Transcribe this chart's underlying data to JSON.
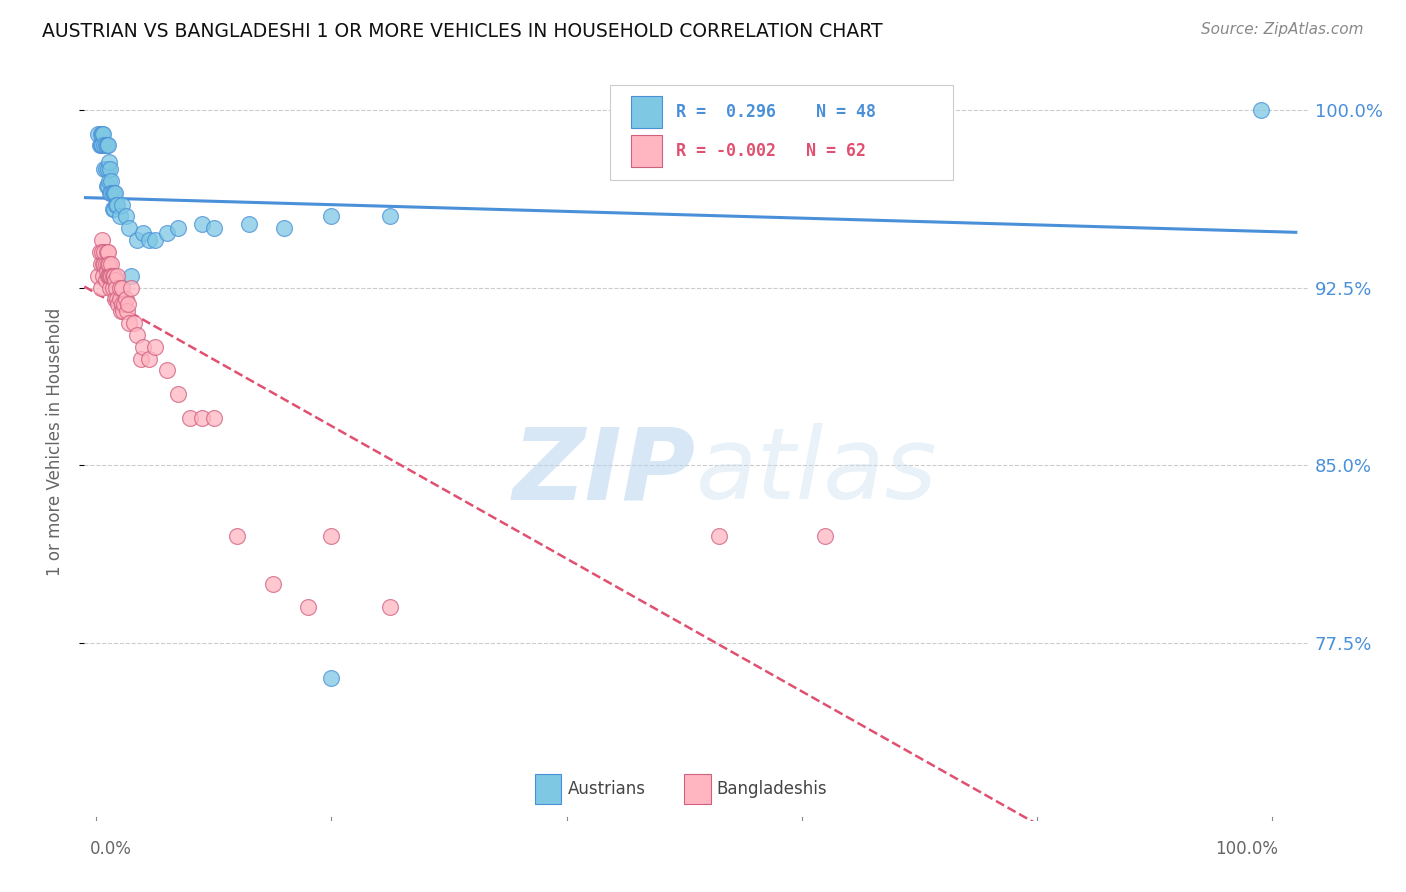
{
  "title": "AUSTRIAN VS BANGLADESHI 1 OR MORE VEHICLES IN HOUSEHOLD CORRELATION CHART",
  "source": "Source: ZipAtlas.com",
  "ylabel": "1 or more Vehicles in Household",
  "xlim": [
    0.0,
    1.0
  ],
  "ylim": [
    0.7,
    1.02
  ],
  "yticks": [
    0.775,
    0.85,
    0.925,
    1.0
  ],
  "ytick_labels": [
    "77.5%",
    "85.0%",
    "92.5%",
    "100.0%"
  ],
  "color_austrians": "#7ec8e3",
  "color_bangladeshis": "#ffb6c1",
  "color_trend_austrians": "#4a90d9",
  "color_trend_bangladeshis": "#e05070",
  "background_color": "#ffffff",
  "watermark_zip": "ZIP",
  "watermark_atlas": "atlas",
  "austrians_x": [
    0.002,
    0.003,
    0.004,
    0.004,
    0.005,
    0.005,
    0.006,
    0.007,
    0.007,
    0.008,
    0.008,
    0.009,
    0.009,
    0.01,
    0.01,
    0.01,
    0.011,
    0.011,
    0.012,
    0.012,
    0.013,
    0.013,
    0.014,
    0.014,
    0.015,
    0.015,
    0.016,
    0.017,
    0.018,
    0.02,
    0.022,
    0.025,
    0.028,
    0.03,
    0.035,
    0.04,
    0.045,
    0.05,
    0.06,
    0.07,
    0.09,
    0.1,
    0.13,
    0.16,
    0.2,
    0.25,
    0.2,
    0.99
  ],
  "austrians_y": [
    0.99,
    0.985,
    0.985,
    0.99,
    0.99,
    0.985,
    0.99,
    0.985,
    0.975,
    0.985,
    0.975,
    0.985,
    0.968,
    0.975,
    0.968,
    0.985,
    0.978,
    0.97,
    0.975,
    0.965,
    0.97,
    0.965,
    0.965,
    0.958,
    0.965,
    0.958,
    0.965,
    0.96,
    0.96,
    0.955,
    0.96,
    0.955,
    0.95,
    0.93,
    0.945,
    0.948,
    0.945,
    0.945,
    0.948,
    0.95,
    0.952,
    0.95,
    0.952,
    0.95,
    0.955,
    0.955,
    0.76,
    1.0
  ],
  "bangladeshis_x": [
    0.002,
    0.003,
    0.004,
    0.004,
    0.005,
    0.005,
    0.006,
    0.006,
    0.007,
    0.007,
    0.008,
    0.008,
    0.009,
    0.009,
    0.01,
    0.01,
    0.01,
    0.011,
    0.011,
    0.012,
    0.012,
    0.013,
    0.013,
    0.014,
    0.014,
    0.015,
    0.016,
    0.016,
    0.017,
    0.018,
    0.018,
    0.019,
    0.02,
    0.02,
    0.021,
    0.022,
    0.022,
    0.023,
    0.024,
    0.025,
    0.026,
    0.027,
    0.028,
    0.03,
    0.032,
    0.035,
    0.038,
    0.04,
    0.045,
    0.05,
    0.06,
    0.07,
    0.08,
    0.09,
    0.1,
    0.12,
    0.15,
    0.18,
    0.2,
    0.25,
    0.53,
    0.62
  ],
  "bangladeshis_y": [
    0.93,
    0.94,
    0.935,
    0.925,
    0.945,
    0.94,
    0.935,
    0.93,
    0.935,
    0.94,
    0.935,
    0.928,
    0.94,
    0.932,
    0.935,
    0.93,
    0.94,
    0.935,
    0.93,
    0.925,
    0.93,
    0.935,
    0.93,
    0.925,
    0.93,
    0.93,
    0.92,
    0.928,
    0.925,
    0.93,
    0.92,
    0.918,
    0.92,
    0.925,
    0.915,
    0.918,
    0.925,
    0.915,
    0.918,
    0.92,
    0.915,
    0.918,
    0.91,
    0.925,
    0.91,
    0.905,
    0.895,
    0.9,
    0.895,
    0.9,
    0.89,
    0.88,
    0.87,
    0.87,
    0.87,
    0.82,
    0.8,
    0.79,
    0.82,
    0.79,
    0.82,
    0.82
  ]
}
